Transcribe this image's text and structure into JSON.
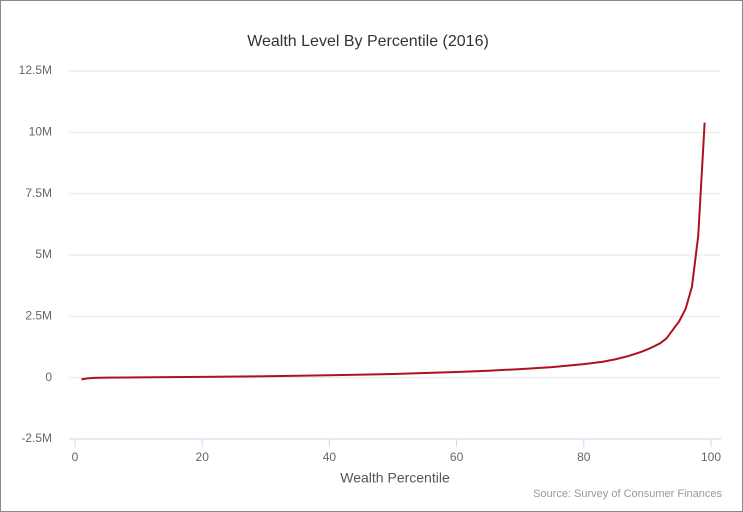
{
  "chart_data": {
    "type": "line",
    "title": "Wealth Level By Percentile (2016)",
    "x_label": "Wealth Percentile",
    "source": "Source: Survey of Consumer Finances",
    "x": [
      1,
      2,
      3,
      5,
      10,
      20,
      30,
      40,
      50,
      60,
      65,
      70,
      75,
      80,
      83,
      85,
      87,
      89,
      90,
      91,
      92,
      93,
      94,
      95,
      96,
      97,
      98,
      99
    ],
    "series": [
      {
        "name": "Wealth",
        "color": "#b0111e",
        "values": [
          -70000,
          -30000,
          -10000,
          0,
          10000,
          30000,
          60000,
          100000,
          150000,
          230000,
          280000,
          350000,
          430000,
          550000,
          650000,
          750000,
          880000,
          1050000,
          1150000,
          1270000,
          1400000,
          1600000,
          1950000,
          2300000,
          2800000,
          3700000,
          5800000,
          10400000
        ]
      }
    ],
    "xlim": [
      0,
      100
    ],
    "xticks": [
      0,
      20,
      40,
      60,
      80,
      100
    ],
    "ylim": [
      -2500000,
      12500000
    ],
    "yticks": [
      {
        "value": -2500000,
        "label": "-2.5M"
      },
      0,
      {
        "value": 2500000,
        "label": "2.5M"
      },
      {
        "value": 5000000,
        "label": "5M"
      },
      {
        "value": 7500000,
        "label": "7.5M"
      },
      {
        "value": 10000000,
        "label": "10M"
      },
      {
        "value": 12500000,
        "label": "12.5M"
      }
    ],
    "grid": true
  }
}
